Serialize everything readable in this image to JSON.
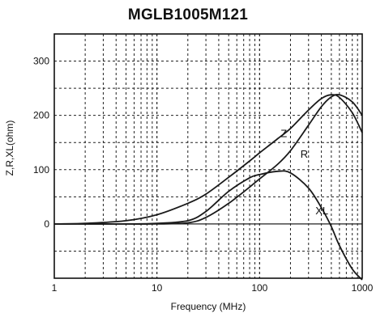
{
  "chart_data": {
    "type": "line",
    "title": "MGLB1005M121",
    "xlabel": "Frequency (MHz)",
    "ylabel": "Z,R,XL(ohm)",
    "xscale": "log",
    "xlim": [
      1,
      1000
    ],
    "ylim": [
      -100,
      350
    ],
    "xticks": [
      1,
      10,
      100,
      1000
    ],
    "xtick_labels": [
      "1",
      "10",
      "100",
      "1000"
    ],
    "yticks": [
      0,
      100,
      200,
      300
    ],
    "ytick_labels": [
      "0",
      "100",
      "200",
      "300"
    ],
    "grid": true,
    "colors": {
      "curve": "#1a1a1a",
      "grid": "#222222",
      "frame": "#111111"
    },
    "series": [
      {
        "name": "Z",
        "x": [
          1,
          2,
          5,
          10,
          20,
          30,
          50,
          80,
          100,
          150,
          200,
          300,
          400,
          500,
          600,
          800,
          1000
        ],
        "y": [
          0,
          1,
          6,
          17,
          38,
          55,
          86,
          116,
          131,
          157,
          176,
          210,
          231,
          238,
          233,
          205,
          168
        ]
      },
      {
        "name": "R",
        "x": [
          1,
          5,
          10,
          20,
          30,
          50,
          80,
          100,
          150,
          200,
          300,
          400,
          500,
          600,
          800,
          1000
        ],
        "y": [
          0,
          0,
          0,
          2,
          12,
          38,
          68,
          83,
          110,
          135,
          182,
          216,
          234,
          238,
          225,
          200
        ]
      },
      {
        "name": "XL",
        "x": [
          1,
          5,
          10,
          20,
          30,
          50,
          80,
          100,
          150,
          200,
          300,
          400,
          500,
          600,
          800,
          1000
        ],
        "y": [
          0,
          0,
          1,
          6,
          23,
          60,
          85,
          91,
          97,
          94,
          66,
          30,
          -5,
          -40,
          -83,
          -103
        ]
      }
    ],
    "annotations": [
      {
        "text": "Z",
        "x": 160,
        "y": 160
      },
      {
        "text": "R",
        "x": 250,
        "y": 122
      },
      {
        "text": "XL",
        "x": 350,
        "y": 18
      }
    ]
  }
}
